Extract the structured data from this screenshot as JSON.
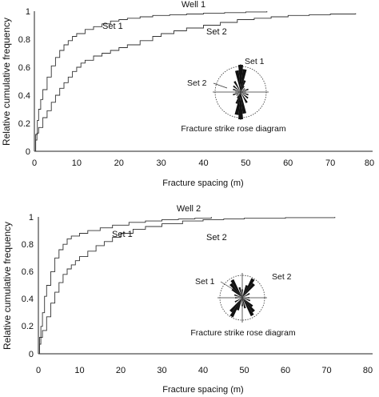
{
  "chart_data": [
    {
      "type": "line",
      "title": "Well 1",
      "xlabel": "Fracture spacing (m)",
      "ylabel": "Relative cumulative frequency",
      "xlim": [
        0,
        80
      ],
      "ylim": [
        0,
        1
      ],
      "x_ticks": [
        "0",
        "10",
        "20",
        "30",
        "40",
        "50",
        "60",
        "70",
        "80"
      ],
      "y_ticks": [
        "0",
        "0.2",
        "0.4",
        "0.6",
        "0.8",
        "1"
      ],
      "series": [
        {
          "name": "Set 1",
          "points": [
            [
              0,
              0
            ],
            [
              0.3,
              0.12
            ],
            [
              0.7,
              0.22
            ],
            [
              1,
              0.3
            ],
            [
              1.5,
              0.37
            ],
            [
              2,
              0.44
            ],
            [
              3,
              0.53
            ],
            [
              4,
              0.61
            ],
            [
              5,
              0.67
            ],
            [
              6,
              0.72
            ],
            [
              7,
              0.76
            ],
            [
              8,
              0.79
            ],
            [
              9,
              0.82
            ],
            [
              10,
              0.84
            ],
            [
              12,
              0.87
            ],
            [
              14,
              0.89
            ],
            [
              16,
              0.91
            ],
            [
              18,
              0.93
            ],
            [
              20,
              0.94
            ],
            [
              22,
              0.95
            ],
            [
              25,
              0.96
            ],
            [
              28,
              0.97
            ],
            [
              32,
              0.975
            ],
            [
              36,
              0.98
            ],
            [
              40,
              0.985
            ],
            [
              45,
              0.99
            ],
            [
              50,
              0.995
            ],
            [
              55,
              1.0
            ]
          ]
        },
        {
          "name": "Set 2",
          "points": [
            [
              0,
              0
            ],
            [
              0.3,
              0.08
            ],
            [
              0.6,
              0.13
            ],
            [
              1,
              0.17
            ],
            [
              2,
              0.24
            ],
            [
              3,
              0.29
            ],
            [
              4,
              0.35
            ],
            [
              5,
              0.4
            ],
            [
              6,
              0.45
            ],
            [
              7,
              0.49
            ],
            [
              8,
              0.53
            ],
            [
              9,
              0.57
            ],
            [
              10,
              0.6
            ],
            [
              11,
              0.63
            ],
            [
              12,
              0.65
            ],
            [
              14,
              0.68
            ],
            [
              16,
              0.7
            ],
            [
              18,
              0.72
            ],
            [
              20,
              0.74
            ],
            [
              22,
              0.76
            ],
            [
              25,
              0.79
            ],
            [
              28,
              0.82
            ],
            [
              30,
              0.84
            ],
            [
              33,
              0.86
            ],
            [
              36,
              0.88
            ],
            [
              40,
              0.9
            ],
            [
              44,
              0.92
            ],
            [
              48,
              0.94
            ],
            [
              52,
              0.95
            ],
            [
              56,
              0.96
            ],
            [
              60,
              0.97
            ],
            [
              65,
              0.975
            ],
            [
              70,
              0.98
            ],
            [
              76,
              0.985
            ]
          ]
        }
      ],
      "series_labels": [
        "Set 1",
        "Set 2"
      ],
      "inset": {
        "caption": "Fracture strike rose diagram",
        "labels": [
          "Set 1",
          "Set 2"
        ],
        "petals": [
          {
            "angle": 0,
            "length": 1.0
          },
          {
            "angle": 10,
            "length": 0.85
          },
          {
            "angle": 20,
            "length": 0.45
          },
          {
            "angle": 30,
            "length": 0.25
          },
          {
            "angle": 50,
            "length": 0.2
          },
          {
            "angle": 70,
            "length": 0.3
          },
          {
            "angle": 90,
            "length": 0.2
          },
          {
            "angle": 110,
            "length": 0.3
          },
          {
            "angle": 130,
            "length": 0.35
          },
          {
            "angle": 150,
            "length": 0.45
          },
          {
            "angle": 170,
            "length": 0.8
          }
        ]
      }
    },
    {
      "type": "line",
      "title": "Well 2",
      "xlabel": "Fracture spacing (m)",
      "ylabel": "Relative cumulative frequency",
      "xlim": [
        0,
        80
      ],
      "ylim": [
        0,
        1
      ],
      "x_ticks": [
        "0",
        "10",
        "20",
        "30",
        "40",
        "50",
        "60",
        "70",
        "80"
      ],
      "y_ticks": [
        "0",
        "0.2",
        "0.4",
        "0.6",
        "0.8",
        "1"
      ],
      "series": [
        {
          "name": "Set 1",
          "points": [
            [
              0,
              0
            ],
            [
              0.3,
              0.12
            ],
            [
              0.6,
              0.2
            ],
            [
              1,
              0.3
            ],
            [
              1.5,
              0.42
            ],
            [
              2,
              0.5
            ],
            [
              3,
              0.6
            ],
            [
              4,
              0.7
            ],
            [
              5,
              0.76
            ],
            [
              6,
              0.8
            ],
            [
              7,
              0.84
            ],
            [
              8,
              0.86
            ],
            [
              10,
              0.88
            ],
            [
              12,
              0.9
            ],
            [
              15,
              0.92
            ],
            [
              18,
              0.94
            ],
            [
              22,
              0.96
            ],
            [
              26,
              0.97
            ],
            [
              30,
              0.98
            ],
            [
              34,
              0.985
            ],
            [
              38,
              0.99
            ],
            [
              42,
              1.0
            ]
          ]
        },
        {
          "name": "Set 2",
          "points": [
            [
              0,
              0
            ],
            [
              0.3,
              0.07
            ],
            [
              0.6,
              0.12
            ],
            [
              1,
              0.17
            ],
            [
              2,
              0.27
            ],
            [
              3,
              0.37
            ],
            [
              4,
              0.45
            ],
            [
              5,
              0.52
            ],
            [
              6,
              0.58
            ],
            [
              7,
              0.62
            ],
            [
              8,
              0.65
            ],
            [
              9,
              0.68
            ],
            [
              10,
              0.71
            ],
            [
              12,
              0.75
            ],
            [
              14,
              0.79
            ],
            [
              16,
              0.82
            ],
            [
              18,
              0.85
            ],
            [
              20,
              0.88
            ],
            [
              23,
              0.91
            ],
            [
              26,
              0.93
            ],
            [
              30,
              0.95
            ],
            [
              35,
              0.97
            ],
            [
              40,
              0.98
            ],
            [
              45,
              0.985
            ],
            [
              50,
              0.99
            ],
            [
              60,
              0.995
            ],
            [
              72,
              1.0
            ]
          ]
        }
      ],
      "series_labels": [
        "Set 1",
        "Set 2"
      ],
      "inset": {
        "caption": "Fracture strike rose diagram",
        "labels": [
          "Set 1",
          "Set 2"
        ],
        "petals": [
          {
            "angle": 0,
            "length": 0.35
          },
          {
            "angle": 20,
            "length": 0.55
          },
          {
            "angle": 30,
            "length": 0.9
          },
          {
            "angle": 40,
            "length": 0.75
          },
          {
            "angle": 60,
            "length": 0.35
          },
          {
            "angle": 90,
            "length": 0.3
          },
          {
            "angle": 110,
            "length": 0.35
          },
          {
            "angle": 130,
            "length": 0.55
          },
          {
            "angle": 140,
            "length": 0.75
          },
          {
            "angle": 150,
            "length": 0.85
          },
          {
            "angle": 165,
            "length": 0.45
          }
        ]
      }
    }
  ]
}
